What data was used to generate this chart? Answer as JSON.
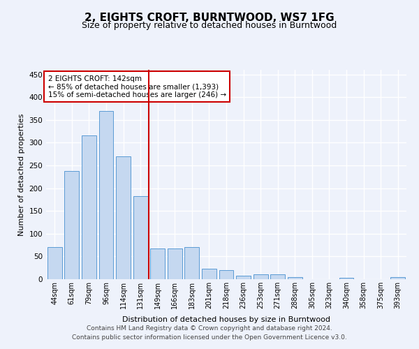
{
  "title": "2, EIGHTS CROFT, BURNTWOOD, WS7 1FG",
  "subtitle": "Size of property relative to detached houses in Burntwood",
  "xlabel": "Distribution of detached houses by size in Burntwood",
  "ylabel": "Number of detached properties",
  "categories": [
    "44sqm",
    "61sqm",
    "79sqm",
    "96sqm",
    "114sqm",
    "131sqm",
    "149sqm",
    "166sqm",
    "183sqm",
    "201sqm",
    "218sqm",
    "236sqm",
    "253sqm",
    "271sqm",
    "288sqm",
    "305sqm",
    "323sqm",
    "340sqm",
    "358sqm",
    "375sqm",
    "393sqm"
  ],
  "values": [
    70,
    237,
    316,
    370,
    270,
    183,
    68,
    68,
    70,
    23,
    20,
    7,
    10,
    10,
    4,
    0,
    0,
    3,
    0,
    0,
    4
  ],
  "bar_color": "#c5d8f0",
  "bar_edge_color": "#5b9bd5",
  "vline_x": 5.5,
  "vline_color": "#cc0000",
  "annotation_line1": "2 EIGHTS CROFT: 142sqm",
  "annotation_line2": "← 85% of detached houses are smaller (1,393)",
  "annotation_line3": "15% of semi-detached houses are larger (246) →",
  "annotation_box_color": "#cc0000",
  "ylim": [
    0,
    460
  ],
  "yticks": [
    0,
    50,
    100,
    150,
    200,
    250,
    300,
    350,
    400,
    450
  ],
  "background_color": "#eef2fb",
  "grid_color": "#ffffff",
  "footer_line1": "Contains HM Land Registry data © Crown copyright and database right 2024.",
  "footer_line2": "Contains public sector information licensed under the Open Government Licence v3.0.",
  "title_fontsize": 11,
  "subtitle_fontsize": 9,
  "ylabel_fontsize": 8,
  "xlabel_fontsize": 8,
  "tick_fontsize": 7,
  "annot_fontsize": 7.5,
  "footer_fontsize": 6.5
}
